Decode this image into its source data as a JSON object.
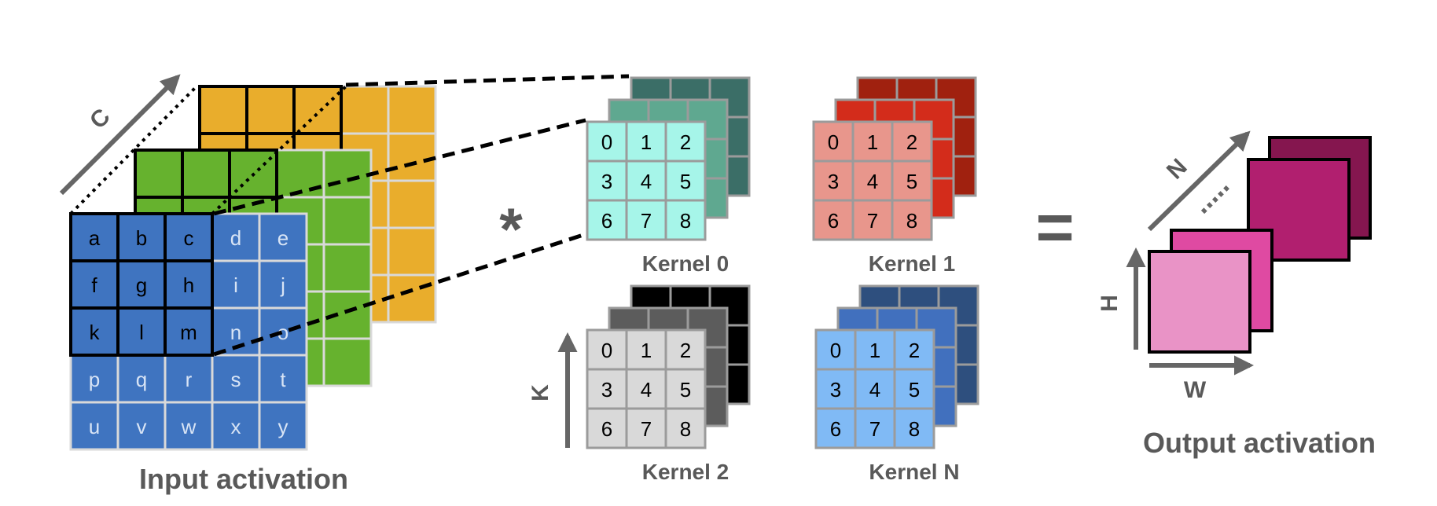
{
  "input": {
    "label": "Input activation",
    "channel_axis_label": "C",
    "letters": [
      "a",
      "b",
      "c",
      "d",
      "e",
      "f",
      "g",
      "h",
      "i",
      "j",
      "k",
      "l",
      "m",
      "n",
      "o",
      "p",
      "q",
      "r",
      "s",
      "t",
      "u",
      "v",
      "w",
      "x",
      "y"
    ],
    "colors": {
      "front": "#3f74c0",
      "middle": "#66b22e",
      "back": "#e9ad2c"
    }
  },
  "operator": "*",
  "equals": "=",
  "kernels": [
    {
      "label": "Kernel 0",
      "front": "#a6f5e9",
      "middle": "#5fa890",
      "back": "#3b6e67"
    },
    {
      "label": "Kernel 1",
      "front": "#e8968c",
      "middle": "#d32c1b",
      "back": "#a0210f"
    },
    {
      "label": "Kernel 2",
      "front": "#d9d9d9",
      "middle": "#5c5c5c",
      "back": "#000000"
    },
    {
      "label": "Kernel N",
      "front": "#80baf5",
      "middle": "#4170be",
      "back": "#2e4f7e"
    }
  ],
  "kernel_values": [
    "0",
    "1",
    "2",
    "3",
    "4",
    "5",
    "6",
    "7",
    "8"
  ],
  "kernel_axis_label": "K",
  "output": {
    "label": "Output activation",
    "height_label": "H",
    "width_label": "W",
    "count_label": "N",
    "colors": [
      "#e993c6",
      "#df4aa2",
      "#b11f6f",
      "#85164f"
    ]
  }
}
